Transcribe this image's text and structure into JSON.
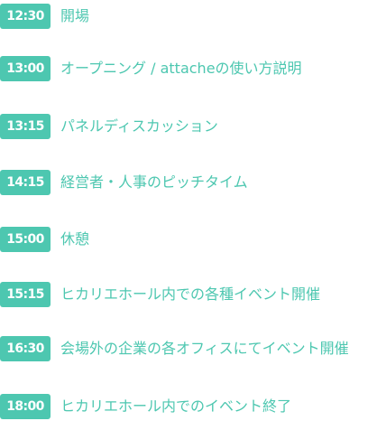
{
  "schedule": [
    {
      "time": "12:30",
      "event": "開場"
    },
    {
      "time": "13:00",
      "event": "オープニング / attacheの使い方説明"
    },
    {
      "time": "13:15",
      "event": "パネルディスカッション"
    },
    {
      "time": "14:15",
      "event": "経営者・人事のピッチタイム"
    },
    {
      "time": "15:00",
      "event": "休憩"
    },
    {
      "time": "15:15",
      "event": "ヒカリエホール内での各種イベント開催"
    },
    {
      "time": "16:30",
      "event": "会場外の企業の各オフィスにてイベント開催"
    },
    {
      "time": "18:00",
      "event": "ヒカリエホール内でのイベント終了"
    }
  ],
  "colors": {
    "accent": "#4dc7b0",
    "time_text": "#ffffff"
  }
}
